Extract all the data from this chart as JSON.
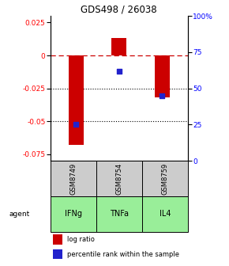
{
  "title": "GDS498 / 26038",
  "samples": [
    "GSM8749",
    "GSM8754",
    "GSM8759"
  ],
  "agents": [
    "IFNg",
    "TNFa",
    "IL4"
  ],
  "log_ratios": [
    -0.068,
    0.013,
    -0.032
  ],
  "percentile_ranks": [
    25.0,
    62.0,
    45.0
  ],
  "ylim_left": [
    -0.08,
    0.03
  ],
  "ylim_right": [
    0,
    100
  ],
  "yticks_left": [
    0.025,
    0.0,
    -0.025,
    -0.05,
    -0.075
  ],
  "yticks_left_labels": [
    "0.025",
    "0",
    "-0.025",
    "-0.05",
    "-0.075"
  ],
  "yticks_right": [
    100,
    75,
    50,
    25,
    0
  ],
  "yticks_right_labels": [
    "100%",
    "75",
    "50",
    "25",
    "0"
  ],
  "bar_color": "#cc0000",
  "dot_color": "#2222cc",
  "agent_color": "#99ee99",
  "sample_bg": "#cccccc",
  "hline_y": 0.0,
  "dotted_lines": [
    -0.025,
    -0.05
  ],
  "bar_width": 0.35,
  "legend_bar_label": "log ratio",
  "legend_dot_label": "percentile rank within the sample"
}
